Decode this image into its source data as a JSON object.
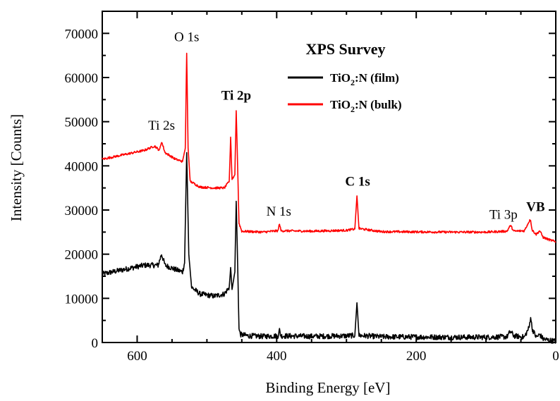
{
  "chart_data": {
    "type": "line",
    "title": "XPS Survey",
    "xlabel": "Binding Energy [eV]",
    "ylabel": "Intensity [Counts]",
    "xlim": [
      650,
      0
    ],
    "ylim": [
      0,
      75000
    ],
    "x_reversed": true,
    "x_ticks": [
      600,
      400,
      200,
      0
    ],
    "y_ticks": [
      0,
      10000,
      20000,
      30000,
      40000,
      50000,
      60000,
      70000
    ],
    "x_tick_labels": [
      "600",
      "400",
      "200",
      "0"
    ],
    "y_tick_labels": [
      "0",
      "10000",
      "20000",
      "30000",
      "40000",
      "50000",
      "60000",
      "70000"
    ],
    "legend_position": "top-right",
    "series": [
      {
        "name": "TiO2:N (film)",
        "legend_main": "TiO",
        "legend_sub": "2",
        "legend_rest": ":N (film)",
        "color": "#000000",
        "noise": 600,
        "points": [
          [
            650,
            15500
          ],
          [
            620,
            16500
          ],
          [
            590,
            17500
          ],
          [
            570,
            17500
          ],
          [
            565,
            20000
          ],
          [
            560,
            17500
          ],
          [
            545,
            16500
          ],
          [
            535,
            16000
          ],
          [
            532,
            18000
          ],
          [
            529,
            43000
          ],
          [
            526,
            20000
          ],
          [
            522,
            12500
          ],
          [
            510,
            11000
          ],
          [
            490,
            10500
          ],
          [
            475,
            11000
          ],
          [
            468,
            12500
          ],
          [
            466,
            17000
          ],
          [
            464,
            12000
          ],
          [
            460,
            16000
          ],
          [
            458,
            32000
          ],
          [
            456,
            18000
          ],
          [
            454,
            3000
          ],
          [
            452,
            1800
          ],
          [
            440,
            1500
          ],
          [
            420,
            1400
          ],
          [
            398,
            1500
          ],
          [
            396,
            2800
          ],
          [
            394,
            1500
          ],
          [
            350,
            1400
          ],
          [
            300,
            1500
          ],
          [
            288,
            1600
          ],
          [
            285,
            9000
          ],
          [
            282,
            1600
          ],
          [
            250,
            1300
          ],
          [
            150,
            1200
          ],
          [
            100,
            1200
          ],
          [
            70,
            1300
          ],
          [
            65,
            2500
          ],
          [
            60,
            1500
          ],
          [
            45,
            1200
          ],
          [
            38,
            3500
          ],
          [
            36,
            6000
          ],
          [
            34,
            3200
          ],
          [
            28,
            1200
          ],
          [
            23,
            1800
          ],
          [
            18,
            800
          ],
          [
            10,
            500
          ],
          [
            0,
            300
          ]
        ]
      },
      {
        "name": "TiO2:N (bulk)",
        "legend_main": "TiO",
        "legend_sub": "2",
        "legend_rest": ":N (bulk)",
        "color": "#ff0000",
        "noise": 250,
        "points": [
          [
            650,
            41500
          ],
          [
            620,
            42500
          ],
          [
            590,
            43500
          ],
          [
            575,
            44500
          ],
          [
            568,
            43500
          ],
          [
            565,
            45500
          ],
          [
            560,
            43000
          ],
          [
            545,
            41500
          ],
          [
            535,
            41000
          ],
          [
            531,
            44000
          ],
          [
            529,
            65500
          ],
          [
            527,
            44000
          ],
          [
            524,
            36500
          ],
          [
            510,
            35200
          ],
          [
            490,
            35000
          ],
          [
            475,
            35000
          ],
          [
            468,
            36500
          ],
          [
            466,
            46500
          ],
          [
            464,
            37000
          ],
          [
            460,
            38000
          ],
          [
            458,
            52500
          ],
          [
            456,
            40000
          ],
          [
            454,
            27000
          ],
          [
            450,
            25200
          ],
          [
            420,
            25000
          ],
          [
            398,
            25300
          ],
          [
            396,
            27000
          ],
          [
            394,
            25300
          ],
          [
            350,
            25200
          ],
          [
            300,
            25400
          ],
          [
            288,
            25700
          ],
          [
            285,
            33200
          ],
          [
            282,
            25800
          ],
          [
            250,
            25100
          ],
          [
            150,
            25000
          ],
          [
            100,
            25000
          ],
          [
            70,
            25200
          ],
          [
            65,
            26500
          ],
          [
            60,
            25200
          ],
          [
            45,
            25300
          ],
          [
            38,
            27500
          ],
          [
            36,
            27800
          ],
          [
            34,
            25500
          ],
          [
            28,
            24500
          ],
          [
            23,
            25300
          ],
          [
            18,
            23800
          ],
          [
            10,
            23300
          ],
          [
            0,
            22800
          ]
        ]
      }
    ],
    "annotations": [
      {
        "text": "O 1s",
        "x": 529,
        "y": 68200,
        "bold": false
      },
      {
        "text": "Ti 2p",
        "x": 458,
        "y": 55000,
        "bold": true
      },
      {
        "text": "Ti 2s",
        "x": 565,
        "y": 48200,
        "bold": false
      },
      {
        "text": "C 1s",
        "x": 284,
        "y": 35500,
        "bold": true
      },
      {
        "text": "N 1s",
        "x": 397,
        "y": 28700,
        "bold": false
      },
      {
        "text": "Ti 3p",
        "x": 75,
        "y": 28000,
        "bold": false
      },
      {
        "text": "VB",
        "x": 29,
        "y": 29800,
        "bold": true
      }
    ]
  }
}
